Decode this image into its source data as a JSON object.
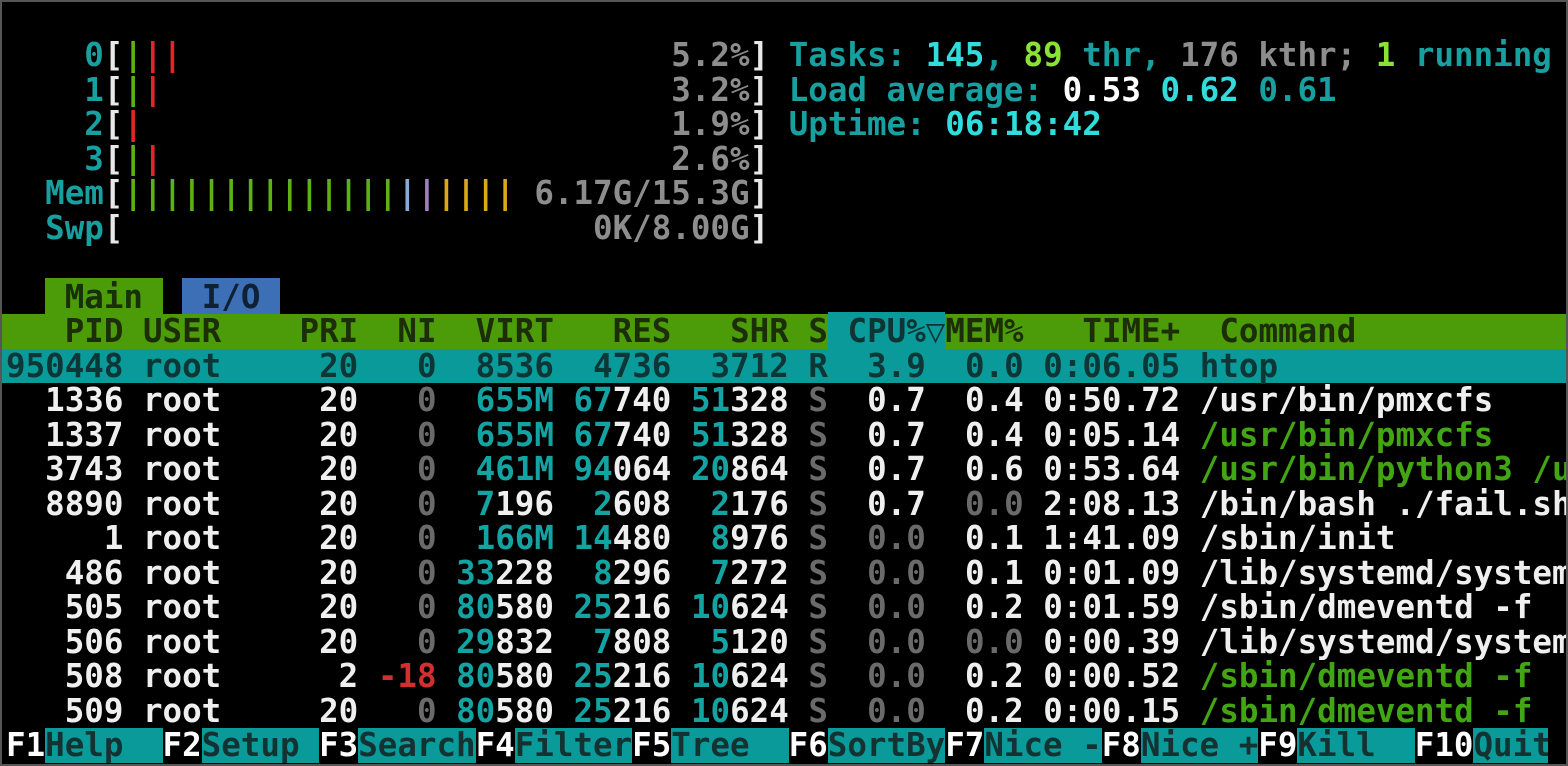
{
  "colors": {
    "background": "#000000",
    "accent_cyan": "#189f9f",
    "bright_cyan": "#31dcdc",
    "bright_green": "#8ae234",
    "command_green": "#42a513",
    "nice_red": "#d23030",
    "header_bg": "#4b9c08",
    "selection_bg": "#0a9a9a",
    "tab_active_bg": "#4b9c08",
    "tab_io_bg": "#3c6fb5",
    "fnbar_bg": "#0a9a9a"
  },
  "meters": {
    "cpu": [
      {
        "label": "0",
        "ticks": [
          "green",
          "red",
          "red"
        ],
        "value": "5.2%"
      },
      {
        "label": "1",
        "ticks": [
          "green",
          "red"
        ],
        "value": "3.2%"
      },
      {
        "label": "2",
        "ticks": [
          "red"
        ],
        "value": "1.9%"
      },
      {
        "label": "3",
        "ticks": [
          "green",
          "red"
        ],
        "value": "2.6%"
      }
    ],
    "mem": {
      "label": "Mem",
      "ticks": [
        "green",
        "green",
        "green",
        "green",
        "green",
        "green",
        "green",
        "green",
        "green",
        "green",
        "green",
        "green",
        "green",
        "green",
        "blue",
        "purple",
        "yellow",
        "yellow",
        "yellow",
        "yellow"
      ],
      "value": "6.17G/15.3G"
    },
    "swp": {
      "label": "Swp",
      "ticks": [],
      "value": "0K/8.00G"
    }
  },
  "summary": {
    "tasks": [
      [
        "Tasks: ",
        "cyan"
      ],
      [
        "145",
        "bcyan"
      ],
      [
        ", ",
        "cyan"
      ],
      [
        "89",
        "bgreen"
      ],
      [
        " thr",
        "cyan"
      ],
      [
        ", ",
        "cyan"
      ],
      [
        "176",
        "gray"
      ],
      [
        " kthr",
        "gray"
      ],
      [
        "; ",
        "gray"
      ],
      [
        "1",
        "bgreen"
      ],
      [
        " running",
        "cyan"
      ]
    ],
    "load": [
      [
        "Load average: ",
        "cyan"
      ],
      [
        "0.53 ",
        "bwhite"
      ],
      [
        "0.62 ",
        "bcyan"
      ],
      [
        "0.61",
        "cyan"
      ]
    ],
    "uptime": [
      [
        "Uptime: ",
        "cyan"
      ],
      [
        "06:18:42",
        "bcyan"
      ]
    ]
  },
  "tabs": [
    {
      "label": "Main",
      "active": true
    },
    {
      "label": "I/O",
      "active": false
    }
  ],
  "table": {
    "columns": [
      "PID",
      "USER",
      "PRI",
      "NI",
      "VIRT",
      "RES",
      "SHR",
      "S",
      "CPU%",
      "MEM%",
      "TIME+",
      "Command"
    ],
    "sort_column": "CPU%",
    "sort_arrow": "▽",
    "rows": [
      {
        "pid": "950448",
        "user": "root",
        "pri": "20",
        "ni": "0",
        "virt": [
          "",
          "8536"
        ],
        "res": [
          "",
          "4736"
        ],
        "shr": [
          "",
          "3712"
        ],
        "s": "R",
        "cpu": "3.9",
        "mem": "0.0",
        "time": "0:06.05",
        "cmd": "htop",
        "cmd_color": "white",
        "selected": true
      },
      {
        "pid": "1336",
        "user": "root",
        "pri": "20",
        "ni": "0",
        "virt": [
          "655M",
          ""
        ],
        "res": [
          "67",
          "740"
        ],
        "shr": [
          "51",
          "328"
        ],
        "s": "S",
        "cpu": "0.7",
        "mem": "0.4",
        "time": "0:50.72",
        "cmd": "/usr/bin/pmxcfs",
        "cmd_color": "white"
      },
      {
        "pid": "1337",
        "user": "root",
        "pri": "20",
        "ni": "0",
        "virt": [
          "655M",
          ""
        ],
        "res": [
          "67",
          "740"
        ],
        "shr": [
          "51",
          "328"
        ],
        "s": "S",
        "cpu": "0.7",
        "mem": "0.4",
        "time": "0:05.14",
        "cmd": "/usr/bin/pmxcfs",
        "cmd_color": "green"
      },
      {
        "pid": "3743",
        "user": "root",
        "pri": "20",
        "ni": "0",
        "virt": [
          "461M",
          ""
        ],
        "res": [
          "94",
          "064"
        ],
        "shr": [
          "20",
          "864"
        ],
        "s": "S",
        "cpu": "0.7",
        "mem": "0.6",
        "time": "0:53.64",
        "cmd": "/usr/bin/python3 /u",
        "cmd_color": "green"
      },
      {
        "pid": "8890",
        "user": "root",
        "pri": "20",
        "ni": "0",
        "virt": [
          "7",
          "196"
        ],
        "res": [
          "2",
          "608"
        ],
        "shr": [
          "2",
          "176"
        ],
        "s": "S",
        "cpu": "0.7",
        "mem": "0.0",
        "time": "2:08.13",
        "cmd": "/bin/bash ./fail.sh",
        "cmd_color": "white"
      },
      {
        "pid": "1",
        "user": "root",
        "pri": "20",
        "ni": "0",
        "virt": [
          "166M",
          ""
        ],
        "res": [
          "14",
          "480"
        ],
        "shr": [
          "8",
          "976"
        ],
        "s": "S",
        "cpu": "0.0",
        "mem": "0.1",
        "time": "1:41.09",
        "cmd": "/sbin/init",
        "cmd_color": "white"
      },
      {
        "pid": "486",
        "user": "root",
        "pri": "20",
        "ni": "0",
        "virt": [
          "33",
          "228"
        ],
        "res": [
          "8",
          "296"
        ],
        "shr": [
          "7",
          "272"
        ],
        "s": "S",
        "cpu": "0.0",
        "mem": "0.1",
        "time": "0:01.09",
        "cmd": "/lib/systemd/system",
        "cmd_color": "white"
      },
      {
        "pid": "505",
        "user": "root",
        "pri": "20",
        "ni": "0",
        "virt": [
          "80",
          "580"
        ],
        "res": [
          "25",
          "216"
        ],
        "shr": [
          "10",
          "624"
        ],
        "s": "S",
        "cpu": "0.0",
        "mem": "0.2",
        "time": "0:01.59",
        "cmd": "/sbin/dmeventd -f",
        "cmd_color": "white"
      },
      {
        "pid": "506",
        "user": "root",
        "pri": "20",
        "ni": "0",
        "virt": [
          "29",
          "832"
        ],
        "res": [
          "7",
          "808"
        ],
        "shr": [
          "5",
          "120"
        ],
        "s": "S",
        "cpu": "0.0",
        "mem": "0.0",
        "time": "0:00.39",
        "cmd": "/lib/systemd/system",
        "cmd_color": "white"
      },
      {
        "pid": "508",
        "user": "root",
        "pri": "2",
        "ni": "-18",
        "ni_red": true,
        "virt": [
          "80",
          "580"
        ],
        "res": [
          "25",
          "216"
        ],
        "shr": [
          "10",
          "624"
        ],
        "s": "S",
        "cpu": "0.0",
        "mem": "0.2",
        "time": "0:00.52",
        "cmd": "/sbin/dmeventd -f",
        "cmd_color": "green"
      },
      {
        "pid": "509",
        "user": "root",
        "pri": "20",
        "ni": "0",
        "virt": [
          "80",
          "580"
        ],
        "res": [
          "25",
          "216"
        ],
        "shr": [
          "10",
          "624"
        ],
        "s": "S",
        "cpu": "0.0",
        "mem": "0.2",
        "time": "0:00.15",
        "cmd": "/sbin/dmeventd -f",
        "cmd_color": "green"
      }
    ]
  },
  "fnbar": [
    {
      "key": "F1",
      "label": "Help"
    },
    {
      "key": "F2",
      "label": "Setup"
    },
    {
      "key": "F3",
      "label": "Search"
    },
    {
      "key": "F4",
      "label": "Filter"
    },
    {
      "key": "F5",
      "label": "Tree"
    },
    {
      "key": "F6",
      "label": "SortBy"
    },
    {
      "key": "F7",
      "label": "Nice -"
    },
    {
      "key": "F8",
      "label": "Nice +"
    },
    {
      "key": "F9",
      "label": "Kill"
    },
    {
      "key": "F10",
      "label": "Quit"
    }
  ]
}
